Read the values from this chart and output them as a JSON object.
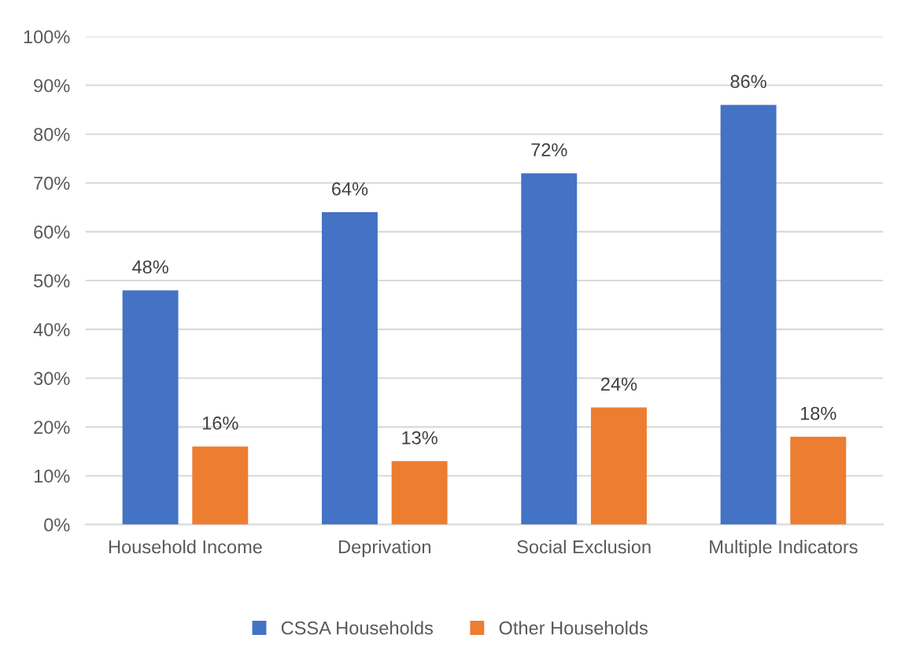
{
  "chart_data": {
    "type": "bar",
    "categories": [
      "Household Income",
      "Deprivation",
      "Social Exclusion",
      "Multiple Indicators"
    ],
    "series": [
      {
        "name": "CSSA Households",
        "color": "#4472c4",
        "values": [
          48,
          64,
          72,
          86
        ],
        "value_labels": [
          "48%",
          "64%",
          "72%",
          "86%"
        ]
      },
      {
        "name": "Other Households",
        "color": "#ed7d31",
        "values": [
          16,
          13,
          24,
          18
        ],
        "value_labels": [
          "16%",
          "13%",
          "24%",
          "18%"
        ]
      }
    ],
    "ylim": [
      0,
      100
    ],
    "yticks": [
      {
        "value": 0,
        "label": "0%"
      },
      {
        "value": 10,
        "label": "10%"
      },
      {
        "value": 20,
        "label": "20%"
      },
      {
        "value": 30,
        "label": "30%"
      },
      {
        "value": 40,
        "label": "40%"
      },
      {
        "value": 50,
        "label": "50%"
      },
      {
        "value": 60,
        "label": "60%"
      },
      {
        "value": 70,
        "label": "70%"
      },
      {
        "value": 80,
        "label": "80%"
      },
      {
        "value": 90,
        "label": "90%"
      },
      {
        "value": 100,
        "label": "100%"
      }
    ],
    "grid": "y",
    "legend": "bottom"
  }
}
